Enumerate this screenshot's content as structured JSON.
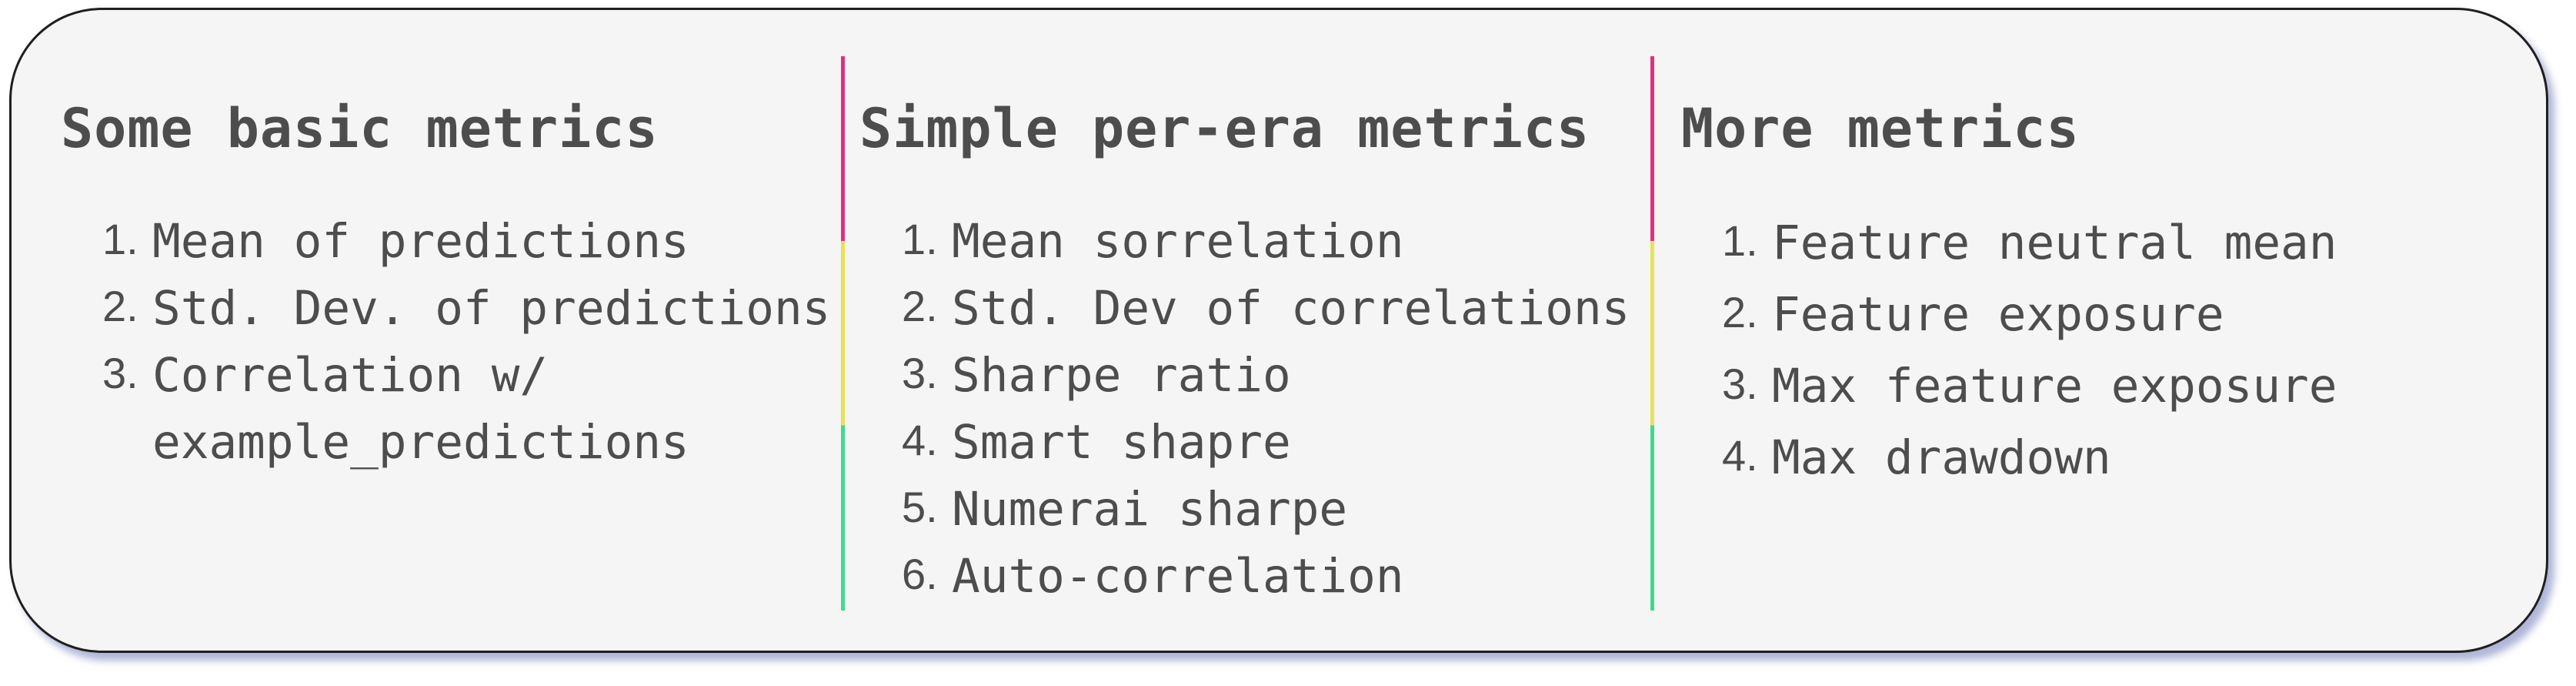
{
  "columns": [
    {
      "title": "Some basic metrics",
      "items": [
        {
          "num": "1.",
          "lines": [
            "Mean of predictions"
          ]
        },
        {
          "num": "2.",
          "lines": [
            "Std. Dev. of predictions"
          ]
        },
        {
          "num": "3.",
          "lines": [
            "Correlation w/",
            "example_predictions"
          ]
        }
      ]
    },
    {
      "title": "Simple per-era metrics",
      "items": [
        {
          "num": "1.",
          "lines": [
            "Mean sorrelation"
          ]
        },
        {
          "num": "2.",
          "lines": [
            "Std. Dev of correlations"
          ]
        },
        {
          "num": "3.",
          "lines": [
            "Sharpe ratio"
          ]
        },
        {
          "num": "4.",
          "lines": [
            "Smart shapre"
          ]
        },
        {
          "num": "5.",
          "lines": [
            "Numerai sharpe"
          ]
        },
        {
          "num": "6.",
          "lines": [
            "Auto-correlation"
          ]
        }
      ]
    },
    {
      "title": "More metrics",
      "items": [
        {
          "num": "1.",
          "lines": [
            "Feature neutral mean"
          ]
        },
        {
          "num": "2.",
          "lines": [
            "Feature exposure"
          ]
        },
        {
          "num": "3.",
          "lines": [
            "Max feature exposure"
          ]
        },
        {
          "num": "4.",
          "lines": [
            "Max drawdown"
          ]
        }
      ]
    }
  ],
  "divider_colors": [
    "#e0317c",
    "#e8e15a",
    "#3fd98f"
  ]
}
